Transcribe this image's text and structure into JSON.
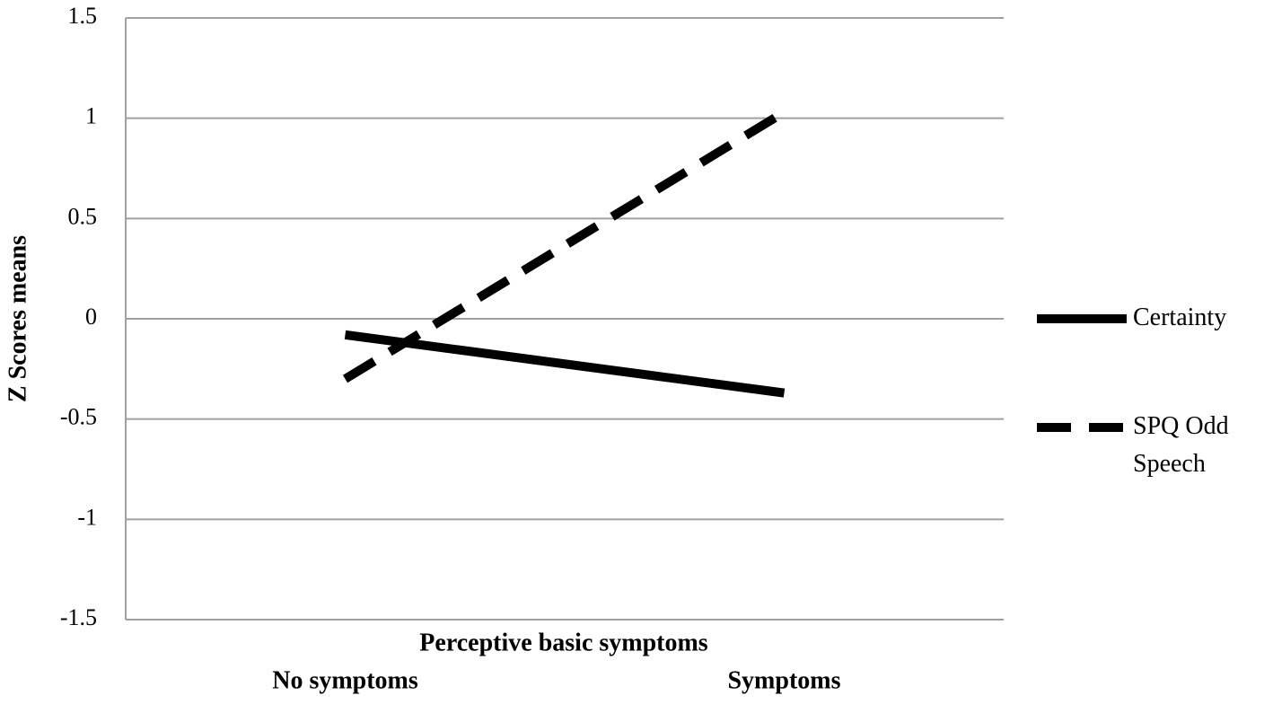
{
  "chart_data": {
    "type": "line",
    "x_label": "Perceptive basic symptoms",
    "y_label": "Z Scores means",
    "categories": [
      "No symptoms",
      "Symptoms"
    ],
    "series": [
      {
        "name": "Certainty",
        "color": "#000000",
        "line_style": "solid",
        "values": [
          -0.08,
          -0.37
        ]
      },
      {
        "name": "SPQ Odd Speech",
        "color": "#000000",
        "line_style": "dashed",
        "values": [
          -0.3,
          1.03
        ]
      }
    ],
    "ylim": [
      -1.5,
      1.5
    ],
    "yticks": [
      -1.5,
      -1,
      -0.5,
      0,
      0.5,
      1,
      1.5
    ],
    "grid": true,
    "legend": "right"
  }
}
